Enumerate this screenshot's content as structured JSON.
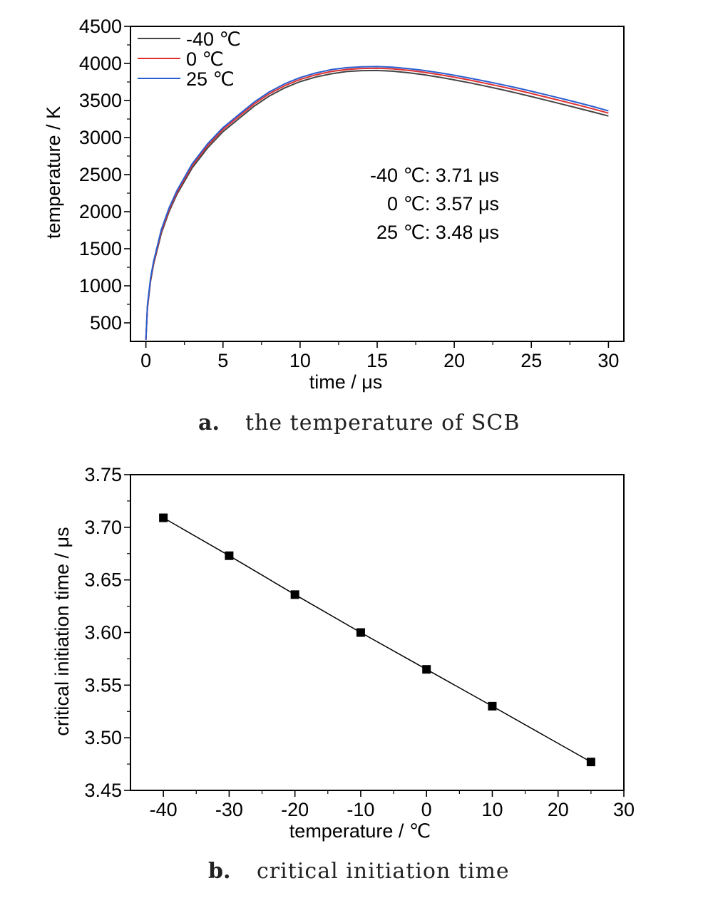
{
  "chart_data": [
    {
      "type": "line",
      "title": "",
      "xlabel": "time / μs",
      "ylabel": "temperature / K",
      "xlim": [
        -1,
        31
      ],
      "ylim": [
        250,
        4500
      ],
      "x_ticks": [
        0,
        5,
        10,
        15,
        20,
        25,
        30
      ],
      "x_tick_labels": [
        "0",
        "5",
        "10",
        "15",
        "20",
        "25",
        "30"
      ],
      "y_ticks": [
        500,
        1000,
        1500,
        2000,
        2500,
        3000,
        3500,
        4000,
        4500
      ],
      "y_tick_labels": [
        "500",
        "1000",
        "1500",
        "2000",
        "2500",
        "3000",
        "3500",
        "4000",
        "4500"
      ],
      "legend_position": "top-left",
      "grid": false,
      "series": [
        {
          "name": "-40 ℃",
          "color": "#444444",
          "x": [
            0,
            0.1,
            0.3,
            0.5,
            1,
            1.5,
            2,
            3,
            4,
            5,
            6,
            7,
            8,
            9,
            10,
            11,
            12,
            13,
            14,
            15,
            16,
            17,
            18,
            19,
            20,
            21,
            22,
            23,
            24,
            25,
            26,
            27,
            28,
            29,
            30
          ],
          "y": [
            270,
            700,
            1060,
            1290,
            1710,
            2000,
            2230,
            2590,
            2860,
            3080,
            3250,
            3420,
            3560,
            3670,
            3755,
            3815,
            3860,
            3890,
            3903,
            3905,
            3895,
            3875,
            3848,
            3815,
            3778,
            3738,
            3695,
            3650,
            3603,
            3553,
            3502,
            3450,
            3398,
            3345,
            3290
          ]
        },
        {
          "name": "0 ℃",
          "color": "#e03030",
          "x": [
            0,
            0.1,
            0.3,
            0.5,
            1,
            1.5,
            2,
            3,
            4,
            5,
            6,
            7,
            8,
            9,
            10,
            11,
            12,
            13,
            14,
            15,
            16,
            17,
            18,
            19,
            20,
            21,
            22,
            23,
            24,
            25,
            26,
            27,
            28,
            29,
            30
          ],
          "y": [
            270,
            720,
            1080,
            1310,
            1735,
            2025,
            2255,
            2620,
            2890,
            3110,
            3280,
            3450,
            3590,
            3700,
            3785,
            3845,
            3890,
            3918,
            3932,
            3935,
            3927,
            3908,
            3882,
            3850,
            3814,
            3775,
            3733,
            3689,
            3643,
            3594,
            3543,
            3492,
            3440,
            3387,
            3330
          ]
        },
        {
          "name": "25 ℃",
          "color": "#2a5fd0",
          "x": [
            0,
            0.1,
            0.3,
            0.5,
            1,
            1.5,
            2,
            3,
            4,
            5,
            6,
            7,
            8,
            9,
            10,
            11,
            12,
            13,
            14,
            15,
            16,
            17,
            18,
            19,
            20,
            21,
            22,
            23,
            24,
            25,
            26,
            27,
            28,
            29,
            30
          ],
          "y": [
            270,
            740,
            1100,
            1330,
            1760,
            2050,
            2280,
            2645,
            2915,
            3135,
            3305,
            3475,
            3615,
            3725,
            3810,
            3870,
            3915,
            3942,
            3955,
            3958,
            3950,
            3931,
            3906,
            3875,
            3840,
            3802,
            3761,
            3718,
            3673,
            3625,
            3575,
            3524,
            3472,
            3418,
            3360
          ]
        }
      ],
      "annotations": [
        "-40 ℃: 3.71 μs",
        "0 ℃: 3.57 μs",
        "25 ℃: 3.48 μs"
      ],
      "caption_letter": "a.",
      "caption_text": "the temperature of SCB"
    },
    {
      "type": "line",
      "title": "",
      "xlabel": "temperature / ℃",
      "ylabel": "critical initiation time / μs",
      "xlim": [
        -45,
        30
      ],
      "ylim": [
        3.45,
        3.75
      ],
      "x_ticks": [
        -40,
        -30,
        -20,
        -10,
        0,
        10,
        20,
        30
      ],
      "x_tick_labels": [
        "-40",
        "-30",
        "-20",
        "-10",
        "0",
        "10",
        "20",
        "30"
      ],
      "y_ticks": [
        3.45,
        3.5,
        3.55,
        3.6,
        3.65,
        3.7,
        3.75
      ],
      "y_tick_labels": [
        "3.45",
        "3.50",
        "3.55",
        "3.60",
        "3.65",
        "3.70",
        "3.75"
      ],
      "grid": false,
      "marker": "square",
      "series": [
        {
          "color": "#000000",
          "x": [
            -40,
            -30,
            -20,
            -10,
            0,
            10,
            25
          ],
          "y": [
            3.709,
            3.673,
            3.636,
            3.6,
            3.565,
            3.53,
            3.477
          ]
        }
      ],
      "caption_letter": "b.",
      "caption_text": "critical initiation time"
    }
  ]
}
